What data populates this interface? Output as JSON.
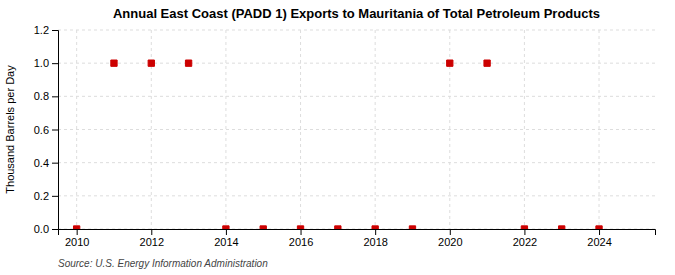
{
  "chart_data": {
    "type": "scatter",
    "title": "Annual East Coast (PADD 1) Exports to Mauritania of Total Petroleum Products",
    "ylabel": "Thousand Barrels per Day",
    "annotations": [
      "Source: U.S. Energy Information Administration"
    ],
    "x": [
      2010,
      2011,
      2012,
      2013,
      2014,
      2015,
      2016,
      2017,
      2018,
      2019,
      2020,
      2021,
      2022,
      2023,
      2024
    ],
    "values": [
      0.0,
      1.0,
      1.0,
      1.0,
      0.0,
      0.0,
      0.0,
      0.0,
      0.0,
      0.0,
      1.0,
      1.0,
      0.0,
      0.0,
      0.0
    ],
    "xlim": [
      2009.5,
      2025.5
    ],
    "xticks": [
      2010,
      2012,
      2014,
      2016,
      2018,
      2020,
      2022,
      2024
    ],
    "ylim": [
      0.0,
      1.2
    ],
    "yticks": [
      {
        "value": 0.0,
        "label": "0.0"
      },
      0.2,
      0.4,
      0.6,
      0.8,
      {
        "value": 1.0,
        "label": "1.0"
      },
      1.2
    ],
    "color": "#cc0000",
    "marker": "square",
    "grid": true
  }
}
